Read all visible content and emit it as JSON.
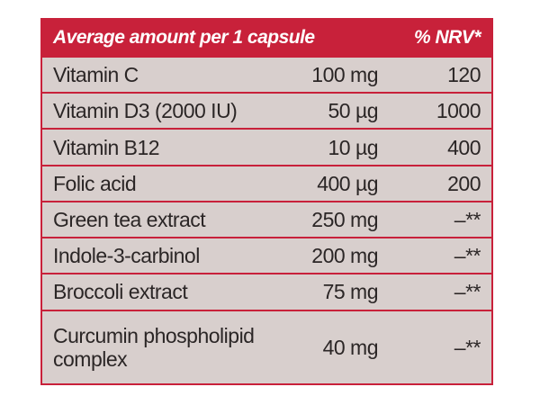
{
  "table": {
    "header": [
      "Average amount per 1 capsule",
      "% NRV*"
    ],
    "rows": [
      [
        "Vitamin C",
        "100 mg",
        "120"
      ],
      [
        "Vitamin D3 (2000 IU)",
        "50 µg",
        "1000"
      ],
      [
        "Vitamin B12",
        "10 µg",
        "400"
      ],
      [
        "Folic acid",
        "400 µg",
        "200"
      ],
      [
        "Green tea extract",
        "250 mg",
        "–**"
      ],
      [
        "Indole-3-carbinol",
        "200 mg",
        "–**"
      ],
      [
        "Broccoli extract",
        "75 mg",
        "–**"
      ],
      [
        "Curcumin phospholipid complex",
        "40 mg",
        "–**"
      ]
    ]
  }
}
